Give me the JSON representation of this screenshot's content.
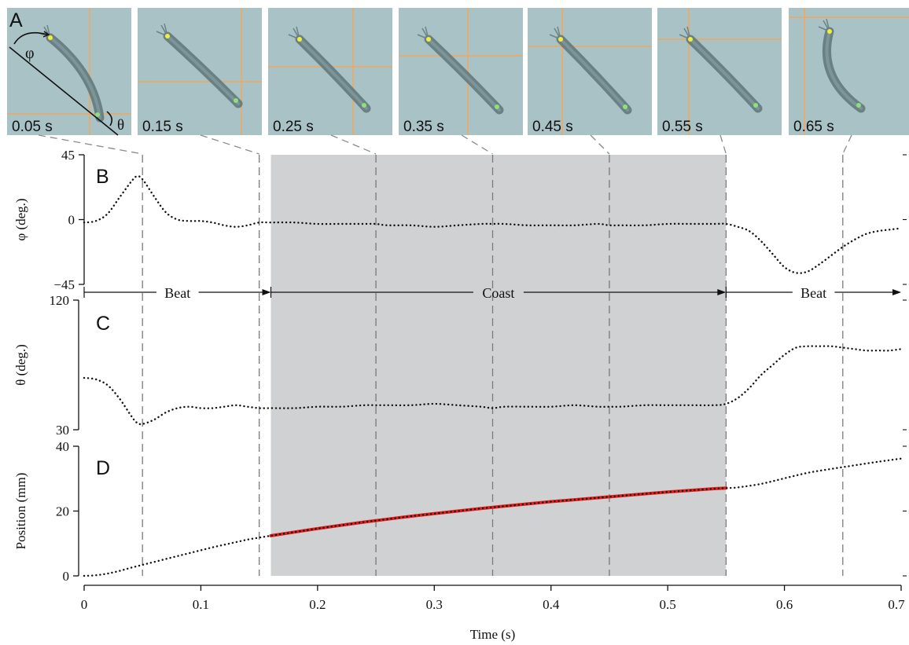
{
  "frames": {
    "panel_letter": "A",
    "times": [
      "0.05 s",
      "0.15 s",
      "0.25 s",
      "0.35 s",
      "0.45 s",
      "0.55 s",
      "0.65 s"
    ],
    "angle_labels": {
      "phi": "φ",
      "theta": "θ"
    },
    "background_color": "#a9c2c6",
    "crosshair_color": "#f0a860",
    "head_marker_color": "#f2ee3a",
    "tail_marker_color": "#8fe07a"
  },
  "chart_data": [
    {
      "panel": "B",
      "type": "line",
      "ylabel": "φ (deg.)",
      "ylim": [
        -45,
        45
      ],
      "yticks": [
        "45",
        "0",
        "−45"
      ],
      "ytick_values": [
        45,
        0,
        -45
      ],
      "style": "dotted",
      "x": [
        0,
        0.01,
        0.02,
        0.03,
        0.04,
        0.045,
        0.05,
        0.06,
        0.07,
        0.08,
        0.09,
        0.1,
        0.11,
        0.12,
        0.13,
        0.14,
        0.15,
        0.16,
        0.18,
        0.2,
        0.22,
        0.24,
        0.25,
        0.26,
        0.28,
        0.3,
        0.32,
        0.34,
        0.35,
        0.36,
        0.38,
        0.4,
        0.42,
        0.44,
        0.45,
        0.46,
        0.48,
        0.5,
        0.52,
        0.54,
        0.55,
        0.56,
        0.57,
        0.58,
        0.59,
        0.6,
        0.61,
        0.62,
        0.63,
        0.64,
        0.65,
        0.66,
        0.67,
        0.68,
        0.69,
        0.7
      ],
      "y": [
        -2,
        -1,
        4,
        15,
        26,
        30,
        28,
        16,
        5,
        0,
        -1,
        -1,
        -2,
        -4,
        -5,
        -4,
        -2,
        -2,
        -2,
        -3,
        -3,
        -3,
        -3,
        -4,
        -4,
        -5,
        -4,
        -3,
        -3,
        -3,
        -4,
        -4,
        -4,
        -3,
        -4,
        -4,
        -4,
        -3,
        -3,
        -3,
        -3,
        -5,
        -8,
        -15,
        -24,
        -33,
        -37,
        -36,
        -31,
        -25,
        -19,
        -14,
        -10,
        -8,
        -7,
        -6
      ]
    },
    {
      "panel": "C",
      "type": "line",
      "ylabel": "θ (deg.)",
      "ylim": [
        30,
        120
      ],
      "yticks": [
        "120",
        "30"
      ],
      "ytick_values": [
        120,
        30
      ],
      "style": "dotted",
      "x": [
        0,
        0.01,
        0.02,
        0.03,
        0.04,
        0.045,
        0.05,
        0.06,
        0.07,
        0.08,
        0.09,
        0.1,
        0.11,
        0.12,
        0.13,
        0.14,
        0.15,
        0.16,
        0.18,
        0.2,
        0.22,
        0.24,
        0.25,
        0.26,
        0.28,
        0.3,
        0.32,
        0.34,
        0.35,
        0.36,
        0.38,
        0.4,
        0.42,
        0.44,
        0.45,
        0.46,
        0.48,
        0.5,
        0.52,
        0.54,
        0.55,
        0.56,
        0.57,
        0.58,
        0.59,
        0.6,
        0.61,
        0.62,
        0.63,
        0.64,
        0.65,
        0.66,
        0.67,
        0.68,
        0.69,
        0.7
      ],
      "y": [
        66,
        65,
        61,
        52,
        40,
        35,
        34,
        37,
        42,
        45,
        46,
        45,
        45,
        46,
        47,
        46,
        45,
        45,
        45,
        46,
        46,
        47,
        47,
        47,
        47,
        48,
        47,
        46,
        45,
        46,
        46,
        46,
        47,
        46,
        46,
        46,
        47,
        47,
        47,
        47,
        48,
        52,
        59,
        68,
        75,
        82,
        87,
        88,
        88,
        88,
        87,
        86,
        85,
        85,
        85,
        86
      ]
    },
    {
      "panel": "D",
      "type": "line",
      "ylabel": "Position (mm)",
      "ylim": [
        0,
        40
      ],
      "yticks": [
        "40",
        "20",
        "0"
      ],
      "ytick_values": [
        40,
        20,
        0
      ],
      "style": "dotted",
      "x": [
        0,
        0.01,
        0.02,
        0.03,
        0.04,
        0.05,
        0.06,
        0.07,
        0.08,
        0.09,
        0.1,
        0.11,
        0.12,
        0.13,
        0.14,
        0.15,
        0.16,
        0.18,
        0.2,
        0.22,
        0.24,
        0.26,
        0.28,
        0.3,
        0.32,
        0.34,
        0.36,
        0.38,
        0.4,
        0.42,
        0.44,
        0.46,
        0.48,
        0.5,
        0.52,
        0.54,
        0.55,
        0.56,
        0.58,
        0.6,
        0.62,
        0.64,
        0.66,
        0.68,
        0.7
      ],
      "y": [
        0,
        0.2,
        0.7,
        1.5,
        2.5,
        3.4,
        4.3,
        5.2,
        6.1,
        7.0,
        7.9,
        8.8,
        9.6,
        10.4,
        11.2,
        11.8,
        12.4,
        13.5,
        14.6,
        15.6,
        16.6,
        17.5,
        18.4,
        19.2,
        20.0,
        20.8,
        21.5,
        22.2,
        22.9,
        23.5,
        24.1,
        24.7,
        25.3,
        25.9,
        26.4,
        26.9,
        27.1,
        27.3,
        28.4,
        30.1,
        31.8,
        33.0,
        34.1,
        35.2,
        36.2
      ],
      "fit_segment": {
        "x_start": 0.16,
        "x_end": 0.55,
        "color": "#e0201c"
      }
    }
  ],
  "panel_letters": [
    "B",
    "C",
    "D"
  ],
  "x_axis": {
    "label": "Time (s)",
    "xlim": [
      0,
      0.7
    ],
    "ticks": [
      "0",
      "0.1",
      "0.2",
      "0.3",
      "0.4",
      "0.5",
      "0.6",
      "0.7"
    ],
    "tick_values": [
      0,
      0.1,
      0.2,
      0.3,
      0.4,
      0.5,
      0.6,
      0.7
    ]
  },
  "phases": [
    {
      "label": "Beat",
      "start": 0,
      "end": 0.16
    },
    {
      "label": "Coast",
      "start": 0.16,
      "end": 0.55
    },
    {
      "label": "Beat",
      "start": 0.55,
      "end": 0.7
    }
  ],
  "coast_shade": {
    "start": 0.16,
    "end": 0.55,
    "color": "#d0d1d3"
  },
  "frame_times": [
    0.05,
    0.15,
    0.25,
    0.35,
    0.45,
    0.55,
    0.65
  ]
}
